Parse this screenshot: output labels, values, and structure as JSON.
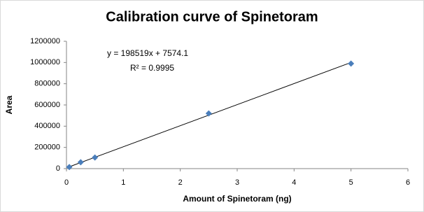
{
  "chart_data": {
    "type": "scatter",
    "title": "Calibration curve of Spinetoram",
    "x_label": "Amount of Spinetoram (ng)",
    "y_label": "Area",
    "x": [
      0.05,
      0.25,
      0.5,
      2.5,
      5
    ],
    "series": [
      {
        "color": "#4a7ebb",
        "values": [
          15000,
          60000,
          105000,
          520000,
          990000
        ]
      }
    ],
    "trendline": {
      "slope": 198519,
      "intercept": 7574.1,
      "color": "#000000"
    },
    "annotations": [
      "y = 198519x + 7574.1",
      "R² = 0.9995"
    ],
    "xlim": [
      0,
      6
    ],
    "xticks": [
      0,
      1,
      2,
      3,
      4,
      5,
      6
    ],
    "ylim": [
      0,
      1200000
    ],
    "yticks": [
      0,
      200000,
      400000,
      600000,
      800000,
      1000000,
      1200000
    ],
    "grid": false
  }
}
